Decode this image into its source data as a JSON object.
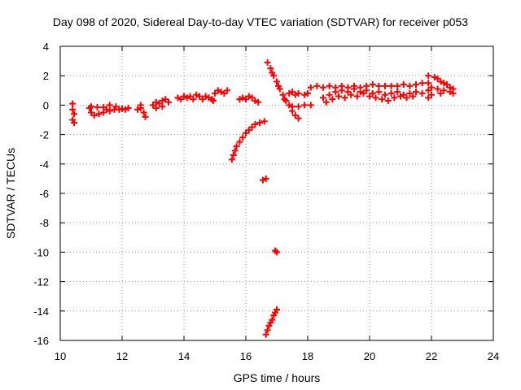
{
  "chart_data": {
    "type": "scatter",
    "title": "Day 098 of 2020, Sidereal Day-to-day VTEC variation (SDTVAR) for receiver p053",
    "xlabel": "GPS time / hours",
    "ylabel": "SDTVAR / TECUs",
    "xlim": [
      10,
      24
    ],
    "ylim": [
      -16,
      4
    ],
    "xticks": [
      "10",
      "12",
      "14",
      "16",
      "18",
      "20",
      "22",
      "24"
    ],
    "yticks": [
      "4",
      "2",
      "0",
      "-2",
      "-4",
      "-6",
      "-8",
      "-10",
      "-12",
      "-14",
      "-16"
    ],
    "grid": true,
    "marker": "+",
    "series": [
      {
        "name": "SDTVAR",
        "color": "#ff0000",
        "points": [
          [
            10.4,
            0.1
          ],
          [
            10.4,
            -0.3
          ],
          [
            10.45,
            -0.6
          ],
          [
            10.4,
            -1.0
          ],
          [
            10.45,
            -1.2
          ],
          [
            10.95,
            -0.2
          ],
          [
            11.0,
            -0.5
          ],
          [
            11.1,
            -0.7
          ],
          [
            11.25,
            -0.6
          ],
          [
            11.4,
            -0.5
          ],
          [
            11.5,
            -0.3
          ],
          [
            11.6,
            -0.4
          ],
          [
            11.75,
            -0.3
          ],
          [
            11.9,
            -0.3
          ],
          [
            12.1,
            -0.3
          ],
          [
            12.2,
            -0.2
          ],
          [
            11.0,
            -0.1
          ],
          [
            11.2,
            -0.15
          ],
          [
            11.4,
            -0.15
          ],
          [
            11.6,
            0.0
          ],
          [
            11.8,
            -0.1
          ],
          [
            12.0,
            -0.25
          ],
          [
            12.5,
            -0.3
          ],
          [
            12.6,
            0.0
          ],
          [
            12.7,
            -0.5
          ],
          [
            12.75,
            -0.8
          ],
          [
            12.6,
            -0.2
          ],
          [
            13.0,
            0.0
          ],
          [
            13.1,
            0.2
          ],
          [
            13.2,
            0.1
          ],
          [
            13.3,
            0.3
          ],
          [
            13.4,
            0.4
          ],
          [
            13.5,
            0.2
          ],
          [
            13.1,
            -0.2
          ],
          [
            13.3,
            -0.1
          ],
          [
            13.8,
            0.5
          ],
          [
            13.9,
            0.4
          ],
          [
            14.0,
            0.6
          ],
          [
            14.1,
            0.5
          ],
          [
            14.2,
            0.6
          ],
          [
            14.3,
            0.4
          ],
          [
            14.4,
            0.7
          ],
          [
            14.5,
            0.6
          ],
          [
            14.6,
            0.4
          ],
          [
            14.7,
            0.6
          ],
          [
            14.8,
            0.5
          ],
          [
            14.9,
            0.4
          ],
          [
            15.0,
            0.8
          ],
          [
            15.1,
            1.0
          ],
          [
            15.2,
            0.9
          ],
          [
            15.3,
            0.8
          ],
          [
            15.4,
            1.0
          ],
          [
            14.95,
            0.3
          ],
          [
            15.8,
            0.4
          ],
          [
            15.9,
            0.5
          ],
          [
            16.0,
            0.4
          ],
          [
            16.1,
            0.6
          ],
          [
            16.2,
            0.5
          ],
          [
            16.3,
            0.3
          ],
          [
            16.4,
            0.2
          ],
          [
            16.7,
            2.9
          ],
          [
            16.8,
            2.5
          ],
          [
            16.9,
            2.0
          ],
          [
            17.0,
            1.6
          ],
          [
            17.1,
            1.1
          ],
          [
            17.2,
            0.7
          ],
          [
            17.25,
            0.4
          ],
          [
            16.85,
            2.2
          ],
          [
            17.05,
            1.3
          ],
          [
            17.3,
            0.3
          ],
          [
            17.4,
            0.0
          ],
          [
            17.5,
            -0.4
          ],
          [
            17.6,
            -0.7
          ],
          [
            17.7,
            -0.9
          ],
          [
            17.4,
            0.8
          ],
          [
            17.5,
            0.9
          ],
          [
            17.6,
            0.7
          ],
          [
            17.7,
            0.8
          ],
          [
            17.9,
            0.7
          ],
          [
            18.0,
            0.8
          ],
          [
            17.5,
            -0.1
          ],
          [
            17.7,
            -0.1
          ],
          [
            17.9,
            0.0
          ],
          [
            18.1,
            0.0
          ],
          [
            15.55,
            -3.7
          ],
          [
            15.6,
            -3.4
          ],
          [
            15.65,
            -3.1
          ],
          [
            15.7,
            -2.8
          ],
          [
            15.8,
            -2.5
          ],
          [
            15.9,
            -2.2
          ],
          [
            16.0,
            -1.9
          ],
          [
            16.1,
            -1.7
          ],
          [
            16.2,
            -1.5
          ],
          [
            16.3,
            -1.3
          ],
          [
            16.45,
            -1.2
          ],
          [
            16.6,
            -1.1
          ],
          [
            16.55,
            -5.1
          ],
          [
            16.65,
            -5.0
          ],
          [
            16.95,
            -9.9
          ],
          [
            17.0,
            -10.0
          ],
          [
            16.65,
            -15.6
          ],
          [
            16.7,
            -15.3
          ],
          [
            16.75,
            -15.0
          ],
          [
            16.8,
            -14.8
          ],
          [
            16.85,
            -14.6
          ],
          [
            16.9,
            -14.3
          ],
          [
            16.95,
            -14.1
          ],
          [
            17.0,
            -13.9
          ],
          [
            18.1,
            1.2
          ],
          [
            18.3,
            1.3
          ],
          [
            18.5,
            1.2
          ],
          [
            18.7,
            1.3
          ],
          [
            18.9,
            1.2
          ],
          [
            19.1,
            1.3
          ],
          [
            19.3,
            1.2
          ],
          [
            19.5,
            1.3
          ],
          [
            19.7,
            1.2
          ],
          [
            19.9,
            1.3
          ],
          [
            20.1,
            1.4
          ],
          [
            20.3,
            1.3
          ],
          [
            20.5,
            1.3
          ],
          [
            20.7,
            1.3
          ],
          [
            20.9,
            1.3
          ],
          [
            21.1,
            1.4
          ],
          [
            21.3,
            1.3
          ],
          [
            21.5,
            1.4
          ],
          [
            21.7,
            1.5
          ],
          [
            21.9,
            1.5
          ],
          [
            18.5,
            0.5
          ],
          [
            18.7,
            0.7
          ],
          [
            18.9,
            0.9
          ],
          [
            19.1,
            1.0
          ],
          [
            19.3,
            0.9
          ],
          [
            19.5,
            1.1
          ],
          [
            19.7,
            0.9
          ],
          [
            19.9,
            1.0
          ],
          [
            20.1,
            0.8
          ],
          [
            20.3,
            0.9
          ],
          [
            20.5,
            0.7
          ],
          [
            20.7,
            0.8
          ],
          [
            20.9,
            0.9
          ],
          [
            21.1,
            0.7
          ],
          [
            21.3,
            0.8
          ],
          [
            21.5,
            0.9
          ],
          [
            21.7,
            0.8
          ],
          [
            21.9,
            1.0
          ],
          [
            18.6,
            0.2
          ],
          [
            18.8,
            0.4
          ],
          [
            19.0,
            0.6
          ],
          [
            19.2,
            0.5
          ],
          [
            19.4,
            0.7
          ],
          [
            19.6,
            0.6
          ],
          [
            19.8,
            0.8
          ],
          [
            20.0,
            0.6
          ],
          [
            20.2,
            0.5
          ],
          [
            20.4,
            0.4
          ],
          [
            20.6,
            0.3
          ],
          [
            20.8,
            0.5
          ],
          [
            21.0,
            0.6
          ],
          [
            21.2,
            0.5
          ],
          [
            21.4,
            0.6
          ],
          [
            21.9,
            2.0
          ],
          [
            22.1,
            1.9
          ],
          [
            22.2,
            1.8
          ],
          [
            22.3,
            1.6
          ],
          [
            22.4,
            1.5
          ],
          [
            22.5,
            1.4
          ],
          [
            22.6,
            1.2
          ],
          [
            22.7,
            1.1
          ],
          [
            22.0,
            1.2
          ],
          [
            22.2,
            1.1
          ],
          [
            22.4,
            1.0
          ],
          [
            22.6,
            0.9
          ],
          [
            22.7,
            0.8
          ],
          [
            22.0,
            0.7
          ],
          [
            21.9,
            0.5
          ],
          [
            22.3,
            0.8
          ]
        ]
      }
    ]
  }
}
